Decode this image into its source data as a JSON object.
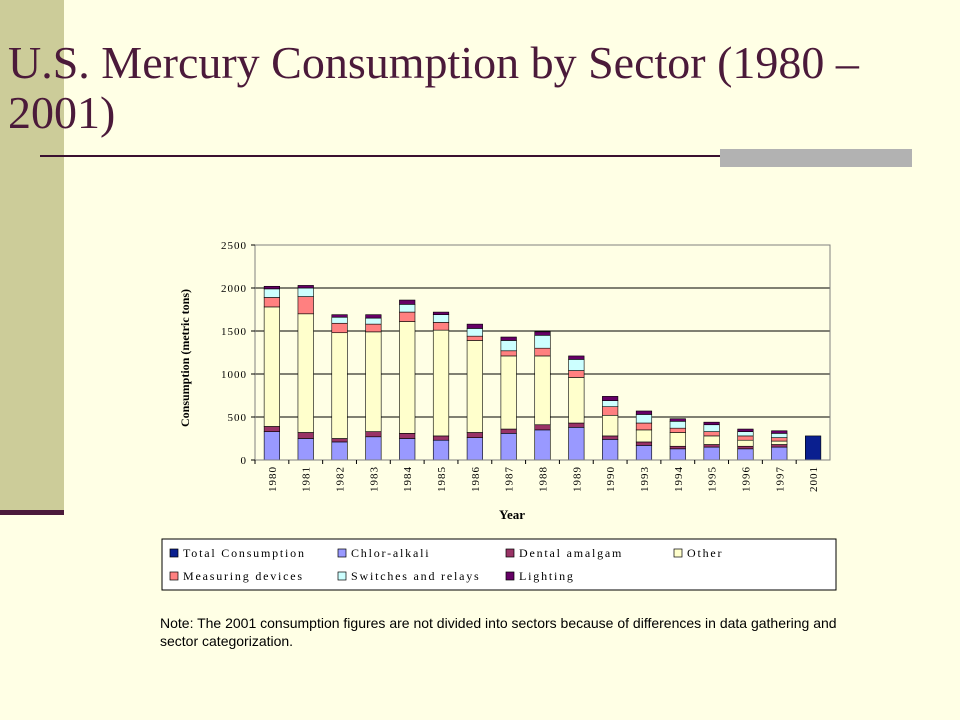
{
  "slide": {
    "title": "U.S. Mercury Consumption by Sector (1980 – 2001)",
    "note": "Note: The 2001 consumption figures are not divided into sectors because of differences in data gathering and sector categorization."
  },
  "colors": {
    "title": "#4B1A3A",
    "side_bar": "#CCCC99",
    "background": "#FFFFE5"
  },
  "chart_data": {
    "type": "bar",
    "stacked": true,
    "xlabel": "Year",
    "ylabel": "Consumption (metric tons)",
    "ylim": [
      0,
      2500
    ],
    "yticks": [
      0,
      500,
      1000,
      1500,
      2000,
      2500
    ],
    "grid": true,
    "legend_position": "bottom",
    "categories": [
      "1980",
      "1981",
      "1982",
      "1983",
      "1984",
      "1985",
      "1986",
      "1987",
      "1988",
      "1989",
      "1990",
      "1993",
      "1994",
      "1995",
      "1996",
      "1997",
      "2001"
    ],
    "series": [
      {
        "name": "Total Consumption",
        "color": "#0A1F8F",
        "values": [
          0,
          0,
          0,
          0,
          0,
          0,
          0,
          0,
          0,
          0,
          0,
          0,
          0,
          0,
          0,
          0,
          280
        ]
      },
      {
        "name": "Chlor-alkali",
        "color": "#9999FF",
        "values": [
          330,
          250,
          210,
          270,
          250,
          230,
          260,
          310,
          350,
          380,
          240,
          170,
          130,
          150,
          130,
          150,
          0
        ]
      },
      {
        "name": "Dental amalgam",
        "color": "#993366",
        "values": [
          60,
          70,
          40,
          60,
          60,
          50,
          60,
          50,
          60,
          50,
          40,
          40,
          30,
          30,
          30,
          30,
          0
        ]
      },
      {
        "name": "Other",
        "color": "#FFFFCC",
        "values": [
          1390,
          1380,
          1230,
          1160,
          1300,
          1230,
          1070,
          850,
          800,
          530,
          240,
          140,
          160,
          100,
          70,
          40,
          0
        ]
      },
      {
        "name": "Measuring devices",
        "color": "#FF8080",
        "values": [
          110,
          200,
          110,
          90,
          110,
          90,
          50,
          60,
          90,
          80,
          100,
          80,
          50,
          50,
          50,
          40,
          0
        ]
      },
      {
        "name": "Switches and relays",
        "color": "#CCFFFF",
        "values": [
          100,
          100,
          70,
          70,
          90,
          90,
          90,
          120,
          150,
          130,
          70,
          100,
          80,
          80,
          50,
          50,
          0
        ]
      },
      {
        "name": "Lighting",
        "color": "#660066",
        "values": [
          30,
          30,
          30,
          40,
          50,
          30,
          50,
          40,
          40,
          40,
          50,
          40,
          30,
          30,
          30,
          30,
          0
        ]
      }
    ]
  }
}
